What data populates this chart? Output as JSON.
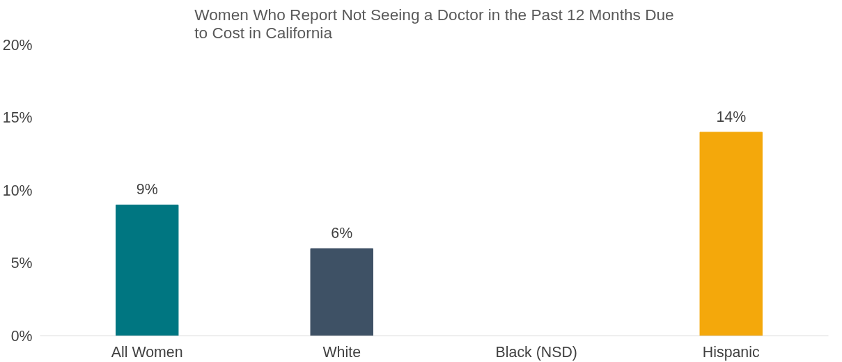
{
  "chart_data": {
    "type": "bar",
    "title": "Women Who Report Not Seeing a Doctor in the Past 12 Months Due to Cost in California",
    "categories": [
      "All Women",
      "White",
      "Black (NSD)",
      "Hispanic"
    ],
    "values": [
      9,
      6,
      null,
      14
    ],
    "colors": [
      "#007681",
      "#3e5165",
      "#f4a80b",
      "#f4a80b"
    ],
    "value_labels": [
      "9%",
      "6%",
      null,
      "14%"
    ],
    "ylim": [
      0,
      20
    ],
    "yticks": [
      {
        "value": 0,
        "label": "0%"
      },
      {
        "value": 5,
        "label": "5%"
      },
      {
        "value": 10,
        "label": "10%"
      },
      {
        "value": 15,
        "label": "15%"
      },
      {
        "value": 20,
        "label": "20%"
      }
    ],
    "grid": false
  }
}
